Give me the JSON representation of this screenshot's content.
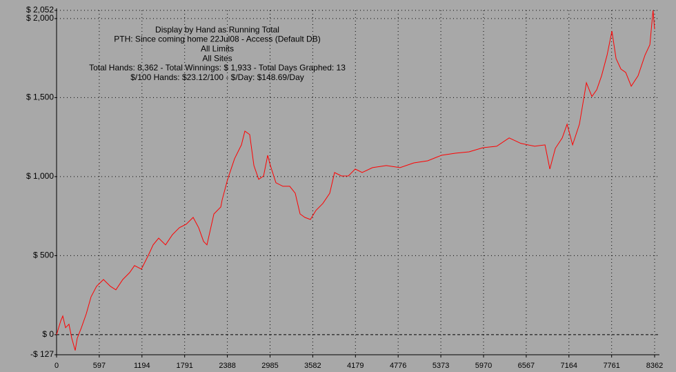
{
  "chart_data": {
    "type": "line",
    "title": "Display by Hand as Running Total",
    "subtitle": [
      "PTH: Since coming home 22Jul08 - Access (Default DB)",
      "All Limits",
      "All Sites",
      "Total Hands: 8,362 - Total Winnings: $ 1,933 - Total Days Graphed: 13",
      "$/100 Hands: $23.12/100 - $/Day: $148.69/Day"
    ],
    "series": [
      {
        "color": "#ff0000",
        "x": [
          0,
          58,
          87,
          125,
          174,
          212,
          260,
          289,
          347,
          415,
          482,
          559,
          656,
          752,
          829,
          926,
          1022,
          1090,
          1186,
          1283,
          1350,
          1427,
          1524,
          1620,
          1717,
          1813,
          1910,
          1987,
          2055,
          2103,
          2200,
          2296,
          2315,
          2392,
          2489,
          2585,
          2633,
          2701,
          2759,
          2826,
          2894,
          2952,
          2990,
          3067,
          3164,
          3260,
          3337,
          3405,
          3472,
          3549,
          3626,
          3723,
          3819,
          3887,
          3984,
          4080,
          4176,
          4273,
          4417,
          4610,
          4803,
          4996,
          5189,
          5382,
          5575,
          5768,
          5961,
          6154,
          6328,
          6492,
          6685,
          6829,
          6897,
          6974,
          7071,
          7138,
          7215,
          7311,
          7408,
          7485,
          7553,
          7620,
          7697,
          7765,
          7823,
          7890,
          7958,
          8035,
          8131,
          8228,
          8295,
          8340,
          8362
        ],
        "values": [
          0,
          87,
          118,
          44,
          66,
          -22,
          -100,
          -22,
          44,
          131,
          240,
          306,
          349,
          306,
          284,
          349,
          393,
          437,
          415,
          502,
          568,
          611,
          568,
          633,
          677,
          699,
          742,
          677,
          590,
          568,
          764,
          808,
          852,
          983,
          1114,
          1201,
          1288,
          1266,
          1070,
          983,
          1004,
          1135,
          1070,
          961,
          939,
          939,
          895,
          764,
          742,
          729,
          786,
          830,
          895,
          1026,
          1004,
          1004,
          1048,
          1026,
          1057,
          1070,
          1057,
          1087,
          1100,
          1135,
          1148,
          1157,
          1183,
          1192,
          1245,
          1210,
          1192,
          1201,
          1048,
          1179,
          1245,
          1332,
          1201,
          1332,
          1594,
          1507,
          1550,
          1638,
          1769,
          1921,
          1747,
          1681,
          1659,
          1572,
          1638,
          1769,
          1834,
          2052,
          1933
        ]
      }
    ],
    "xlim": [
      0,
      8362
    ],
    "xticks": [
      0,
      597,
      1194,
      1791,
      2388,
      2985,
      3582,
      4179,
      4776,
      5373,
      5970,
      6567,
      7164,
      7761,
      8362
    ],
    "ylim": [
      -127,
      2052
    ],
    "yticks": [
      {
        "value": -127,
        "label": "-$ 127"
      },
      {
        "value": 0,
        "label": "$ 0"
      },
      {
        "value": 500,
        "label": "$ 500"
      },
      {
        "value": 1000,
        "label": "$ 1,000"
      },
      {
        "value": 1500,
        "label": "$ 1,500"
      },
      {
        "value": 2000,
        "label": "$ 2,000"
      },
      {
        "value": 2052,
        "label": "$ 2,052"
      }
    ],
    "grid": true
  }
}
